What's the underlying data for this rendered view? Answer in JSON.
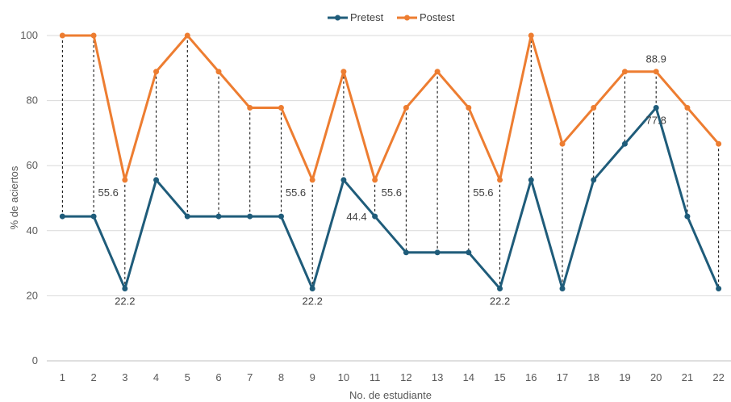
{
  "chart_data": {
    "type": "line",
    "xlabel": "No. de estudiante",
    "ylabel": "% de aciertos",
    "ylim": [
      0,
      100
    ],
    "yticks": [
      "0",
      "20",
      "40",
      "60",
      "80",
      "100"
    ],
    "categories": [
      "1",
      "2",
      "3",
      "4",
      "5",
      "6",
      "7",
      "8",
      "9",
      "10",
      "11",
      "12",
      "13",
      "14",
      "15",
      "16",
      "17",
      "18",
      "19",
      "20",
      "21",
      "22"
    ],
    "legend_position": "top-center",
    "grid": "horizontal",
    "drop_lines": true,
    "series": [
      {
        "name": "Pretest",
        "color": "#1F5C7A",
        "values": [
          44.4,
          44.4,
          22.2,
          55.6,
          44.4,
          44.4,
          44.4,
          44.4,
          22.2,
          55.6,
          44.4,
          33.3,
          33.3,
          33.3,
          22.2,
          55.6,
          22.2,
          55.6,
          66.7,
          77.8,
          44.4,
          22.2
        ]
      },
      {
        "name": "Postest",
        "color": "#ED7D31",
        "values": [
          100,
          100,
          55.6,
          88.9,
          100,
          88.9,
          77.8,
          77.8,
          55.6,
          88.9,
          55.6,
          77.8,
          88.9,
          77.8,
          55.6,
          100,
          66.7,
          77.8,
          88.9,
          88.9,
          77.8,
          66.7
        ]
      }
    ],
    "annotations": [
      {
        "series": "Pretest",
        "category": "3",
        "text": "22.2",
        "pos": "below"
      },
      {
        "series": "Pretest",
        "category": "9",
        "text": "22.2",
        "pos": "below"
      },
      {
        "series": "Pretest",
        "category": "15",
        "text": "22.2",
        "pos": "below"
      },
      {
        "series": "Pretest",
        "category": "11",
        "text": "44.4",
        "pos": "left"
      },
      {
        "series": "Pretest",
        "category": "20",
        "text": "77.8",
        "pos": "below"
      },
      {
        "series": "Postest",
        "category": "3",
        "text": "55.6",
        "pos": "below-left"
      },
      {
        "series": "Postest",
        "category": "9",
        "text": "55.6",
        "pos": "below-left"
      },
      {
        "series": "Postest",
        "category": "11",
        "text": "55.6",
        "pos": "below-right"
      },
      {
        "series": "Postest",
        "category": "15",
        "text": "55.6",
        "pos": "below-left"
      },
      {
        "series": "Postest",
        "category": "20",
        "text": "88.9",
        "pos": "above"
      }
    ]
  }
}
